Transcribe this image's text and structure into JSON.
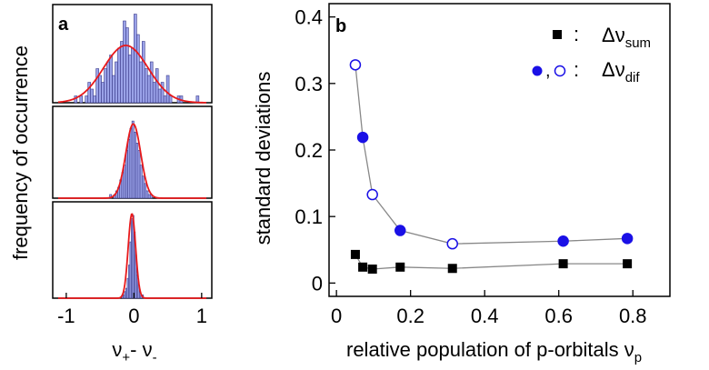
{
  "chart_data": [
    {
      "panel": "a",
      "type": "bar",
      "panel_label": "a",
      "ylabel": "frequency of occurrence",
      "xlabel_parts": {
        "main1": "ν",
        "sub1": "+",
        "dash": "- ",
        "main2": "ν",
        "sub2": "-"
      },
      "xlim": [
        -1.2,
        1.15
      ],
      "x_ticks": [
        -1,
        0,
        1
      ],
      "x_tick_labels": [
        "-1",
        "0",
        "1"
      ],
      "fit_color": "#e8191b",
      "bar_color": "#9aa2e8",
      "subplots": [
        {
          "name": "top",
          "bin_width": 0.04,
          "bins_x": [
            -0.86,
            -0.82,
            -0.78,
            -0.74,
            -0.7,
            -0.66,
            -0.62,
            -0.58,
            -0.54,
            -0.5,
            -0.46,
            -0.42,
            -0.38,
            -0.34,
            -0.3,
            -0.26,
            -0.22,
            -0.18,
            -0.14,
            -0.1,
            -0.06,
            -0.02,
            0.02,
            0.06,
            0.1,
            0.14,
            0.18,
            0.22,
            0.26,
            0.3,
            0.34,
            0.38,
            0.42,
            0.46,
            0.5,
            0.54,
            0.58,
            0.62,
            0.66,
            0.7,
            0.74,
            0.78,
            0.82,
            0.86,
            0.9,
            0.94,
            0.98
          ],
          "counts": [
            1,
            0,
            1,
            0,
            1,
            3,
            2,
            1,
            5,
            4,
            3,
            5,
            6,
            7,
            4,
            6,
            8,
            9,
            12,
            11,
            7,
            8,
            13,
            10,
            6,
            9,
            5,
            4,
            6,
            3,
            5,
            2,
            3,
            1,
            4,
            1,
            0,
            0,
            1,
            1,
            0,
            0,
            0,
            0,
            0,
            1,
            0
          ],
          "ymax": 14,
          "fit": {
            "amplitude": 8.4,
            "mean": -0.12,
            "sigma": 0.33
          }
        },
        {
          "name": "middle",
          "bin_width": 0.03,
          "bins_x": [
            -0.345,
            -0.315,
            -0.285,
            -0.255,
            -0.225,
            -0.195,
            -0.165,
            -0.135,
            -0.105,
            -0.075,
            -0.045,
            -0.015,
            0.015,
            0.045,
            0.075,
            0.105,
            0.135,
            0.165,
            0.195,
            0.225,
            0.255
          ],
          "counts": [
            1,
            0,
            1,
            2,
            3,
            5,
            7,
            9,
            13,
            16,
            19,
            21,
            18,
            15,
            13,
            9,
            6,
            4,
            2,
            1,
            1
          ],
          "ymax": 24,
          "fit": {
            "amplitude": 20.2,
            "mean": -0.01,
            "sigma": 0.11
          }
        },
        {
          "name": "bottom",
          "bin_width": 0.02,
          "bins_x": [
            -0.17,
            -0.15,
            -0.13,
            -0.11,
            -0.09,
            -0.07,
            -0.05,
            -0.03,
            -0.01,
            0.01,
            0.03,
            0.05,
            0.07,
            0.09,
            0.11,
            0.13
          ],
          "counts": [
            1,
            1,
            2,
            3,
            6,
            10,
            17,
            24,
            25,
            20,
            13,
            7,
            4,
            2,
            1,
            1
          ],
          "ymax": 28,
          "fit": {
            "amplitude": 25.5,
            "mean": -0.03,
            "sigma": 0.055
          }
        }
      ]
    },
    {
      "panel": "b",
      "type": "scatter",
      "panel_label": "b",
      "ylabel": "standard deviations",
      "xlabel_main": "relative population of p-orbitals ν",
      "xlabel_sub": "p",
      "xlim": [
        -0.02,
        0.9
      ],
      "ylim": [
        -0.02,
        0.42
      ],
      "x_ticks": [
        0,
        0.2,
        0.4,
        0.6,
        0.8
      ],
      "x_tick_labels": [
        "0",
        "0.2",
        "0.4",
        "0.6",
        "0.8"
      ],
      "y_ticks": [
        0,
        0.1,
        0.2,
        0.3,
        0.4
      ],
      "y_tick_labels": [
        "0",
        "0.1",
        "0.2",
        "0.3",
        "0.4"
      ],
      "line_color": "#888888",
      "series": [
        {
          "name": "Δν_sum",
          "marker": "square",
          "color": "#000000",
          "x": [
            0.051,
            0.071,
            0.097,
            0.172,
            0.313,
            0.612,
            0.785
          ],
          "y": [
            0.043,
            0.024,
            0.021,
            0.024,
            0.022,
            0.029,
            0.029
          ],
          "filled": [
            true,
            true,
            true,
            true,
            true,
            true,
            true
          ]
        },
        {
          "name": "Δν_dif",
          "marker": "circle",
          "color": "#1a10e6",
          "x": [
            0.051,
            0.071,
            0.097,
            0.172,
            0.313,
            0.612,
            0.785
          ],
          "y": [
            0.328,
            0.219,
            0.133,
            0.079,
            0.059,
            0.063,
            0.067
          ],
          "filled": [
            false,
            true,
            false,
            true,
            false,
            true,
            true
          ]
        }
      ],
      "legend": {
        "placement": "top-right",
        "entries": [
          {
            "symbol_text": ":",
            "label_main": "Δν",
            "label_sub": "sum"
          },
          {
            "symbol_text": ",",
            "colon": ":",
            "label_main": "Δν",
            "label_sub": "dif"
          }
        ]
      }
    }
  ]
}
